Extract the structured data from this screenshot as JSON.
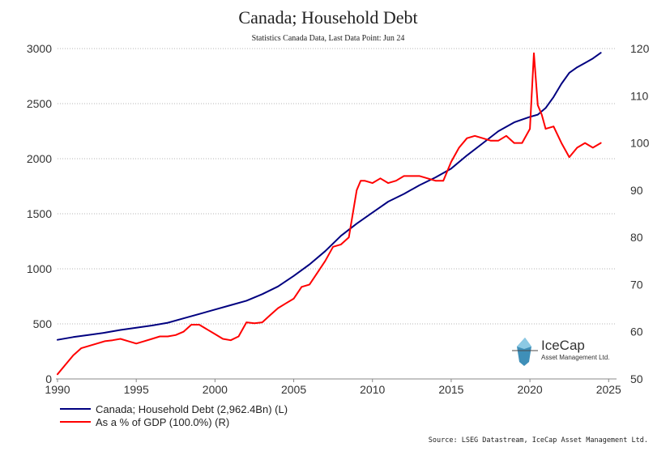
{
  "chart_data": {
    "type": "line",
    "title": "Canada; Household Debt",
    "subtitle": "Statistics Canada Data,  Last Data Point: Jun 24",
    "source": "Source: LSEG Datastream, IceCap Asset Management Ltd.",
    "legend_placement": "bottom-left",
    "grid": "horizontal-dotted",
    "xlim": [
      1990,
      2025.5
    ],
    "ylim_left": [
      0,
      3000
    ],
    "ylim_right": [
      50,
      120
    ],
    "x_ticks": [
      "1990",
      "1995",
      "2000",
      "2005",
      "2010",
      "2015",
      "2020",
      "2025"
    ],
    "y_ticks_left": [
      "0",
      "500",
      "1000",
      "1500",
      "2000",
      "2500",
      "3000"
    ],
    "y_ticks_right": [
      "50",
      "60",
      "70",
      "80",
      "90",
      "100",
      "110",
      "120"
    ],
    "series": [
      {
        "name": "Canada; Household Debt (2,962.4Bn) (L)",
        "axis": "left",
        "color": "#000080",
        "x": [
          1990,
          1991,
          1992,
          1993,
          1994,
          1995,
          1996,
          1997,
          1998,
          1999,
          2000,
          2001,
          2002,
          2003,
          2004,
          2005,
          2006,
          2007,
          2008,
          2009,
          2010,
          2011,
          2012,
          2013,
          2014,
          2015,
          2016,
          2017,
          2018,
          2019,
          2020,
          2020.5,
          2021,
          2021.5,
          2022,
          2022.5,
          2023,
          2023.5,
          2024,
          2024.5
        ],
        "y": [
          355,
          380,
          400,
          420,
          445,
          465,
          485,
          510,
          550,
          590,
          630,
          670,
          710,
          770,
          840,
          935,
          1040,
          1160,
          1300,
          1410,
          1510,
          1610,
          1680,
          1760,
          1830,
          1910,
          2030,
          2140,
          2250,
          2330,
          2380,
          2400,
          2460,
          2560,
          2680,
          2780,
          2830,
          2870,
          2910,
          2962
        ]
      },
      {
        "name": "As a % of GDP (100.0%) (R)",
        "axis": "right",
        "color": "#ff0000",
        "x": [
          1990,
          1990.5,
          1991,
          1991.5,
          1992,
          1992.5,
          1993,
          1993.5,
          1994,
          1994.5,
          1995,
          1995.5,
          1996,
          1996.5,
          1997,
          1997.5,
          1998,
          1998.5,
          1999,
          1999.5,
          2000,
          2000.5,
          2001,
          2001.5,
          2002,
          2002.5,
          2003,
          2003.5,
          2004,
          2004.5,
          2005,
          2005.5,
          2006,
          2006.5,
          2007,
          2007.5,
          2008,
          2008.5,
          2009,
          2009.25,
          2009.5,
          2010,
          2010.5,
          2011,
          2011.5,
          2012,
          2012.5,
          2013,
          2013.5,
          2014,
          2014.5,
          2015,
          2015.5,
          2016,
          2016.5,
          2017,
          2017.5,
          2018,
          2018.5,
          2019,
          2019.5,
          2020,
          2020.25,
          2020.5,
          2020.75,
          2021,
          2021.5,
          2022,
          2022.5,
          2023,
          2023.5,
          2024,
          2024.5
        ],
        "y": [
          51,
          53,
          55,
          56.5,
          57,
          57.5,
          58,
          58.2,
          58.5,
          58,
          57.5,
          58,
          58.5,
          59,
          59,
          59.3,
          60,
          61.5,
          61.5,
          60.5,
          59.5,
          58.5,
          58.2,
          59,
          62,
          61.8,
          62,
          63.5,
          65,
          66,
          67,
          69.5,
          70,
          72.5,
          75,
          78,
          78.5,
          80,
          90,
          92,
          92,
          91.5,
          92.5,
          91.5,
          92,
          93,
          93,
          93,
          92.5,
          92,
          92,
          96,
          99,
          101,
          101.5,
          101,
          100.5,
          100.5,
          101.5,
          100,
          100,
          103,
          119,
          108,
          106,
          103,
          103.5,
          100,
          97,
          99,
          100,
          99,
          100
        ]
      }
    ]
  },
  "logo": {
    "name": "IceCap",
    "tagline": "Asset Management Ltd."
  }
}
